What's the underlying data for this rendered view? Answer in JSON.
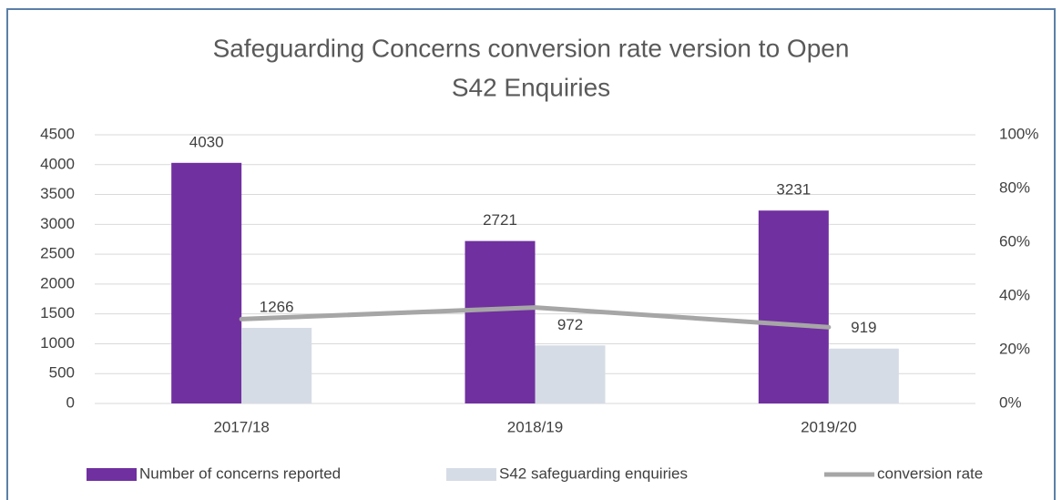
{
  "chart_data": {
    "type": "bar",
    "title": [
      "Safeguarding Concerns conversion rate version to Open",
      "S42 Enquiries"
    ],
    "categories": [
      "2017/18",
      "2018/19",
      "2019/20"
    ],
    "series": [
      {
        "name": "Number of concerns reported",
        "color": "#7030a0",
        "values": [
          4030,
          2721,
          3231
        ]
      },
      {
        "name": "S42 safeguarding enquiries",
        "color": "#d6dce5",
        "values": [
          1266,
          972,
          919
        ]
      },
      {
        "name": "conversion rate",
        "color": "#a6a6a6",
        "type": "line",
        "axis": "y2",
        "values": [
          31.4,
          35.7,
          28.4
        ]
      }
    ],
    "ylim": [
      0,
      4500
    ],
    "yticks": [
      0,
      500,
      1000,
      1500,
      2000,
      2500,
      3000,
      3500,
      4000,
      4500
    ],
    "y2lim": [
      0,
      100
    ],
    "y2ticks": [
      {
        "value": 0,
        "label": "0%"
      },
      {
        "value": 20,
        "label": "20%"
      },
      {
        "value": 40,
        "label": "40%"
      },
      {
        "value": 60,
        "label": "60%"
      },
      {
        "value": 80,
        "label": "80%"
      },
      {
        "value": 100,
        "label": "100%"
      }
    ],
    "grid": true,
    "legend": "bottom"
  }
}
